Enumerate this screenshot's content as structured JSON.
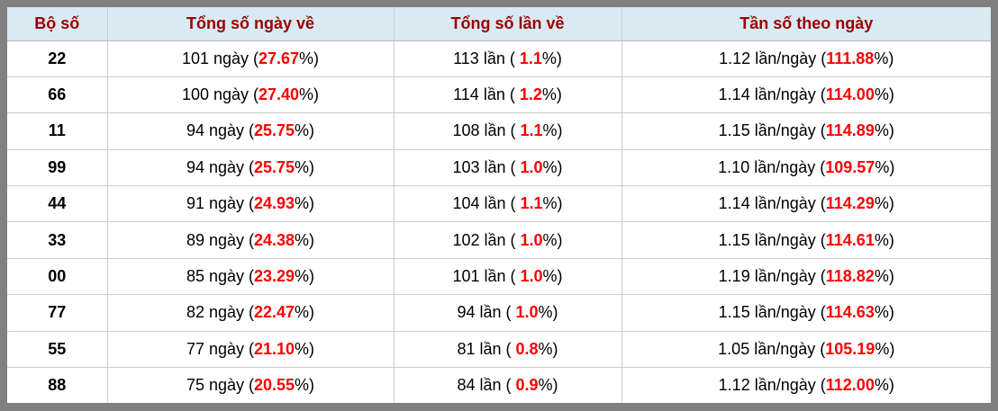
{
  "colors": {
    "frame_gray": "#808080",
    "header_bg": "#daeaf3",
    "header_text": "#990000",
    "highlight_red": "#ff0000",
    "cell_border": "#cccccc"
  },
  "table": {
    "headers": [
      "Bộ số",
      "Tổng số ngày về",
      "Tổng số lần về",
      "Tần số theo ngày"
    ],
    "units": {
      "days": "ngày",
      "times": "lần",
      "freq": "lần/ngày"
    },
    "rows": [
      {
        "pair": "22",
        "days": "101",
        "days_pct": "27.67",
        "times": "113",
        "times_pct": "1.1",
        "freq": "1.12",
        "freq_pct": "111.88"
      },
      {
        "pair": "66",
        "days": "100",
        "days_pct": "27.40",
        "times": "114",
        "times_pct": "1.2",
        "freq": "1.14",
        "freq_pct": "114.00"
      },
      {
        "pair": "11",
        "days": "94",
        "days_pct": "25.75",
        "times": "108",
        "times_pct": "1.1",
        "freq": "1.15",
        "freq_pct": "114.89"
      },
      {
        "pair": "99",
        "days": "94",
        "days_pct": "25.75",
        "times": "103",
        "times_pct": "1.0",
        "freq": "1.10",
        "freq_pct": "109.57"
      },
      {
        "pair": "44",
        "days": "91",
        "days_pct": "24.93",
        "times": "104",
        "times_pct": "1.1",
        "freq": "1.14",
        "freq_pct": "114.29"
      },
      {
        "pair": "33",
        "days": "89",
        "days_pct": "24.38",
        "times": "102",
        "times_pct": "1.0",
        "freq": "1.15",
        "freq_pct": "114.61"
      },
      {
        "pair": "00",
        "days": "85",
        "days_pct": "23.29",
        "times": "101",
        "times_pct": "1.0",
        "freq": "1.19",
        "freq_pct": "118.82"
      },
      {
        "pair": "77",
        "days": "82",
        "days_pct": "22.47",
        "times": "94",
        "times_pct": "1.0",
        "freq": "1.15",
        "freq_pct": "114.63"
      },
      {
        "pair": "55",
        "days": "77",
        "days_pct": "21.10",
        "times": "81",
        "times_pct": "0.8",
        "freq": "1.05",
        "freq_pct": "105.19"
      },
      {
        "pair": "88",
        "days": "75",
        "days_pct": "20.55",
        "times": "84",
        "times_pct": "0.9",
        "freq": "1.12",
        "freq_pct": "112.00"
      }
    ]
  },
  "chart_data": {
    "type": "table",
    "columns": [
      "Bộ số",
      "Tổng số ngày về",
      "Tổng số lần về",
      "Tần số theo ngày"
    ],
    "rows": [
      [
        "22",
        "101 ngày (27.67%)",
        "113 lần ( 1.1%)",
        "1.12 lần/ngày (111.88%)"
      ],
      [
        "66",
        "100 ngày (27.40%)",
        "114 lần ( 1.2%)",
        "1.14 lần/ngày (114.00%)"
      ],
      [
        "11",
        "94 ngày (25.75%)",
        "108 lần ( 1.1%)",
        "1.15 lần/ngày (114.89%)"
      ],
      [
        "99",
        "94 ngày (25.75%)",
        "103 lần ( 1.0%)",
        "1.10 lần/ngày (109.57%)"
      ],
      [
        "44",
        "91 ngày (24.93%)",
        "104 lần ( 1.1%)",
        "1.14 lần/ngày (114.29%)"
      ],
      [
        "33",
        "89 ngày (24.38%)",
        "102 lần ( 1.0%)",
        "1.15 lần/ngày (114.61%)"
      ],
      [
        "00",
        "85 ngày (23.29%)",
        "101 lần ( 1.0%)",
        "1.19 lần/ngày (118.82%)"
      ],
      [
        "77",
        "82 ngày (22.47%)",
        "94 lần ( 1.0%)",
        "1.15 lần/ngày (114.63%)"
      ],
      [
        "55",
        "77 ngày (21.10%)",
        "81 lần ( 0.8%)",
        "1.05 lần/ngày (105.19%)"
      ],
      [
        "88",
        "75 ngày (20.55%)",
        "84 lần ( 0.9%)",
        "1.12 lần/ngày (112.00%)"
      ]
    ]
  }
}
